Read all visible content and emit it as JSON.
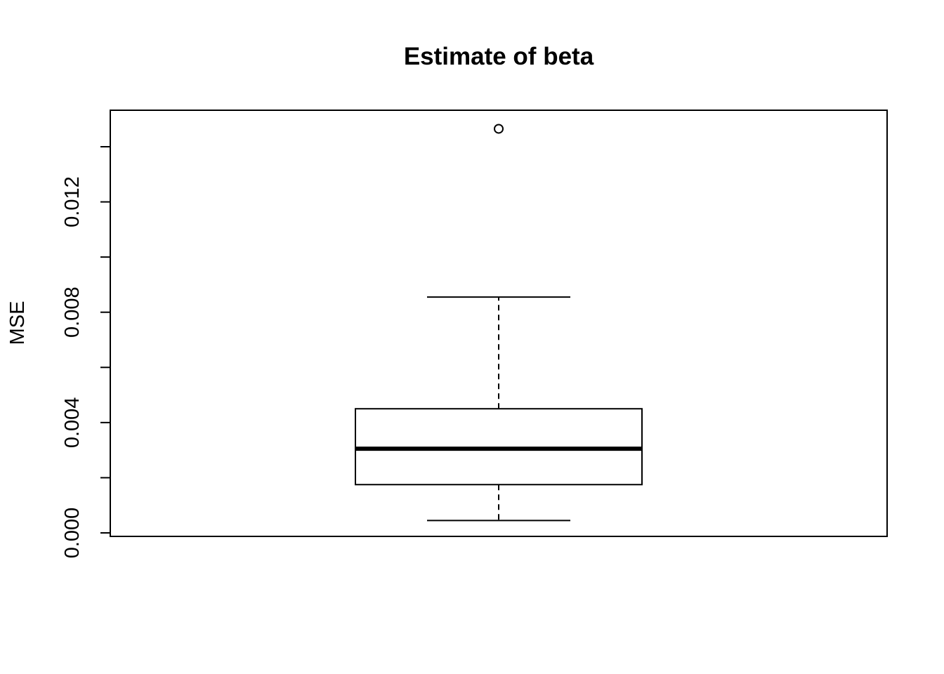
{
  "chart_data": {
    "type": "boxplot",
    "title": "Estimate of beta",
    "xlabel": "",
    "ylabel": "MSE",
    "ylim": [
      0.0,
      0.0148
    ],
    "y_ticks": [
      0.0,
      0.002,
      0.004,
      0.006,
      0.008,
      0.01,
      0.012,
      0.014
    ],
    "y_tick_labels": [
      "0.000",
      "",
      "0.004",
      "",
      "0.008",
      "",
      "0.012",
      ""
    ],
    "grid": false,
    "series": [
      {
        "whisker_low": 0.00045,
        "q1": 0.00175,
        "median": 0.00305,
        "q3": 0.0045,
        "whisker_high": 0.00855,
        "outliers": [
          0.01465
        ]
      }
    ],
    "colors": {
      "box_fill": "#ffffff",
      "stroke": "#000000"
    }
  }
}
